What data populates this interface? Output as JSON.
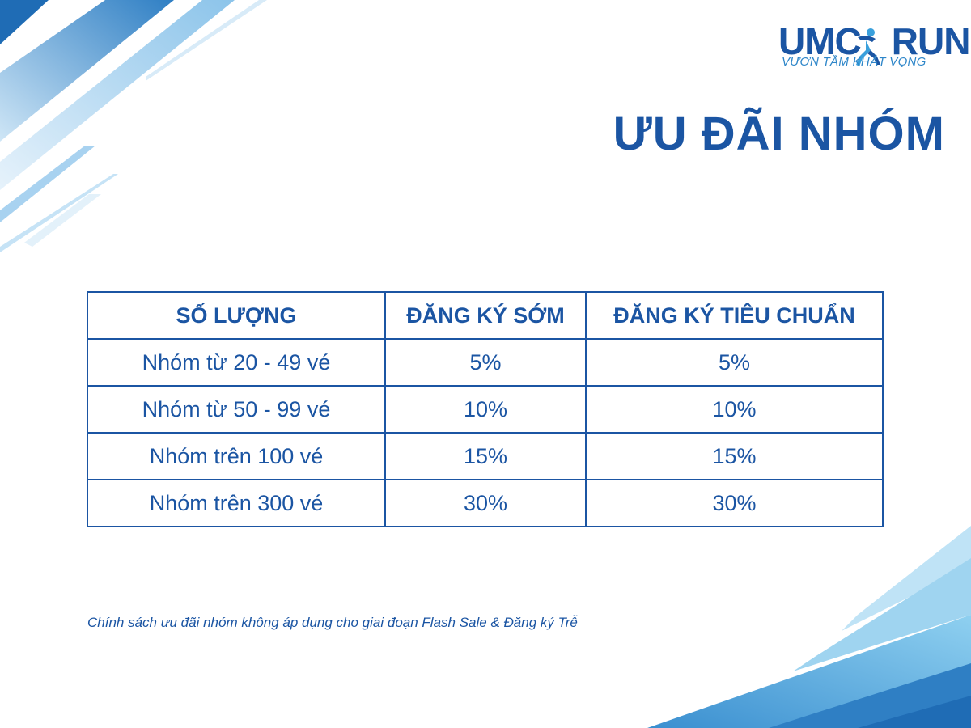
{
  "brand": {
    "logo_main_left": "UMC",
    "logo_main_right": "RUN",
    "logo_tagline": "VƯƠN TẦM KHÁT VỌNG"
  },
  "title": "ƯU ĐÃI NHÓM",
  "table": {
    "headers": [
      "SỐ LƯỢNG",
      "ĐĂNG KÝ SỚM",
      "ĐĂNG KÝ TIÊU CHUẨN"
    ],
    "rows": [
      [
        "Nhóm từ 20 - 49 vé",
        "5%",
        "5%"
      ],
      [
        "Nhóm từ 50 - 99 vé",
        "10%",
        "10%"
      ],
      [
        "Nhóm trên 100 vé",
        "15%",
        "15%"
      ],
      [
        "Nhóm trên 300 vé",
        "30%",
        "30%"
      ]
    ]
  },
  "note": "Chính sách ưu đãi nhóm không áp dụng cho giai đoạn Flash Sale & Đăng ký Trễ",
  "colors": {
    "primary": "#1b55a3",
    "accent_light": "#6fc3ea",
    "accent_mid": "#3a8fd0",
    "background": "#ffffff"
  }
}
